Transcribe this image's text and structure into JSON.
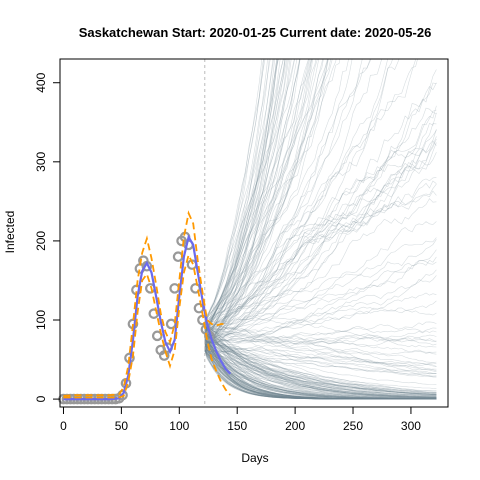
{
  "chart_data": {
    "type": "line",
    "title": "Saskatchewan Start:  2020-01-25   Current date:  2020-05-26",
    "xlabel": "Days",
    "ylabel": "Infected",
    "xlim": [
      -3,
      332
    ],
    "ylim": [
      -10,
      430
    ],
    "x_ticks": [
      0,
      50,
      100,
      150,
      200,
      250,
      300
    ],
    "y_ticks": [
      0,
      100,
      200,
      300,
      400
    ],
    "current_day": 122,
    "grid": false,
    "legend": "none",
    "colors": {
      "observed": "#999999",
      "fit": "#6a6aee",
      "bounds": "#ff9900",
      "simulations": "#6e858f",
      "current_line": "#bbbbbb"
    },
    "series": [
      {
        "role": "observed",
        "x": [
          0,
          3,
          6,
          9,
          12,
          15,
          18,
          21,
          24,
          27,
          30,
          33,
          36,
          39,
          42,
          45,
          48,
          51,
          54,
          57,
          60,
          63,
          66,
          69,
          72,
          75,
          78,
          81,
          84,
          87,
          90,
          93,
          96,
          99,
          102,
          105,
          108,
          111,
          114,
          117,
          120,
          123,
          126
        ],
        "y": [
          0,
          0,
          0,
          0,
          0,
          0,
          0,
          0,
          0,
          0,
          0,
          0,
          0,
          0,
          0,
          0,
          1,
          5,
          20,
          52,
          95,
          138,
          165,
          175,
          168,
          140,
          108,
          80,
          62,
          55,
          65,
          95,
          140,
          180,
          200,
          205,
          195,
          170,
          140,
          115,
          100,
          88,
          80
        ]
      },
      {
        "role": "fit",
        "x": [
          0,
          10,
          20,
          30,
          40,
          48,
          52,
          56,
          60,
          64,
          68,
          72,
          76,
          80,
          84,
          88,
          92,
          96,
          100,
          104,
          108,
          112,
          116,
          120,
          124,
          128,
          132,
          136,
          140,
          144
        ],
        "y": [
          0,
          0,
          0,
          0,
          0,
          1,
          8,
          30,
          75,
          130,
          162,
          172,
          160,
          130,
          98,
          72,
          60,
          75,
          130,
          180,
          205,
          195,
          160,
          125,
          95,
          75,
          60,
          48,
          38,
          32
        ]
      },
      {
        "role": "upper-bound",
        "x": [
          0,
          10,
          20,
          30,
          40,
          48,
          52,
          56,
          60,
          64,
          68,
          72,
          76,
          80,
          84,
          88,
          92,
          96,
          100,
          104,
          108,
          112,
          116,
          120,
          124,
          128,
          132,
          136,
          140
        ],
        "y": [
          4,
          5,
          5,
          5,
          5,
          6,
          15,
          42,
          95,
          150,
          185,
          203,
          178,
          145,
          108,
          85,
          72,
          95,
          150,
          205,
          235,
          222,
          175,
          135,
          100,
          95,
          93,
          95,
          95
        ]
      },
      {
        "role": "lower-bound",
        "x": [
          0,
          10,
          20,
          30,
          40,
          48,
          52,
          56,
          60,
          64,
          68,
          72,
          76,
          80,
          84,
          88,
          92,
          96,
          100,
          104,
          108,
          112,
          116,
          120,
          124,
          128,
          132,
          136,
          140,
          144
        ],
        "y": [
          2,
          2,
          2,
          2,
          2,
          2,
          4,
          22,
          55,
          110,
          150,
          158,
          140,
          112,
          84,
          60,
          42,
          62,
          115,
          160,
          182,
          170,
          140,
          108,
          75,
          50,
          35,
          22,
          12,
          5
        ]
      }
    ]
  }
}
